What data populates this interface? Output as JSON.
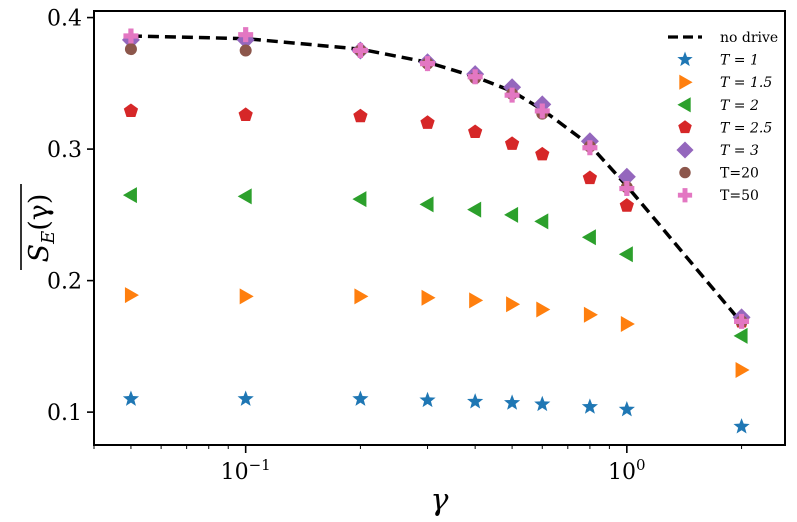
{
  "chart_data": {
    "type": "scatter",
    "title": "",
    "xlabel": "γ",
    "ylabel": "S_E(γ)",
    "xscale": "log",
    "xlim": [
      0.04,
      2.6
    ],
    "ylim": [
      0.075,
      0.405
    ],
    "x_ticks": [
      {
        "value": 0.1,
        "base": "10",
        "exp": "−1"
      },
      {
        "value": 1,
        "base": "10",
        "exp": "0"
      }
    ],
    "y_ticks": [
      {
        "value": 0.1,
        "label": "0.1"
      },
      {
        "value": 0.2,
        "label": "0.2"
      },
      {
        "value": 0.3,
        "label": "0.3"
      },
      {
        "value": 0.4,
        "label": "0.4"
      }
    ],
    "legend_position": "top-right",
    "grid": false,
    "x": [
      0.05,
      0.1,
      0.2,
      0.3,
      0.4,
      0.5,
      0.6,
      0.8,
      1.0,
      2.0
    ],
    "series": [
      {
        "name": "no drive",
        "kind": "line",
        "color": "#000000",
        "x": [
          0.05,
          0.1,
          0.2,
          0.3,
          0.4,
          0.5,
          0.6,
          0.8,
          1.0,
          2.0
        ],
        "values": [
          0.386,
          0.384,
          0.376,
          0.366,
          0.355,
          0.344,
          0.33,
          0.303,
          0.272,
          0.168
        ]
      },
      {
        "name": "T = 1",
        "marker": "star",
        "color": "#1f77b4",
        "values": [
          0.11,
          0.11,
          0.11,
          0.109,
          0.108,
          0.107,
          0.106,
          0.104,
          0.102,
          0.089
        ]
      },
      {
        "name": "T = 1.5",
        "marker": "triangle-right",
        "color": "#ff7f0e",
        "values": [
          0.189,
          0.188,
          0.188,
          0.187,
          0.185,
          0.182,
          0.178,
          0.174,
          0.167,
          0.132
        ]
      },
      {
        "name": "T = 2",
        "marker": "triangle-left",
        "color": "#2ca02c",
        "values": [
          0.265,
          0.264,
          0.262,
          0.258,
          0.254,
          0.25,
          0.245,
          0.233,
          0.22,
          0.158
        ]
      },
      {
        "name": "T = 2.5",
        "marker": "pentagon",
        "color": "#d62728",
        "values": [
          0.329,
          0.326,
          0.325,
          0.32,
          0.313,
          0.304,
          0.296,
          0.278,
          0.257,
          0.169
        ]
      },
      {
        "name": "T = 3",
        "marker": "diamond",
        "color": "#9467bd",
        "values": [
          0.383,
          0.383,
          0.375,
          0.366,
          0.357,
          0.347,
          0.334,
          0.306,
          0.279,
          0.172
        ]
      },
      {
        "name": "T=20",
        "marker": "circle",
        "color": "#8c564b",
        "values": [
          0.376,
          0.375,
          0.375,
          0.365,
          0.354,
          0.342,
          0.327,
          0.302,
          0.271,
          0.169
        ]
      },
      {
        "name": "T=50",
        "marker": "plus",
        "color": "#e377c2",
        "values": [
          0.386,
          0.387,
          0.375,
          0.365,
          0.355,
          0.341,
          0.329,
          0.301,
          0.27,
          0.169
        ]
      }
    ]
  }
}
